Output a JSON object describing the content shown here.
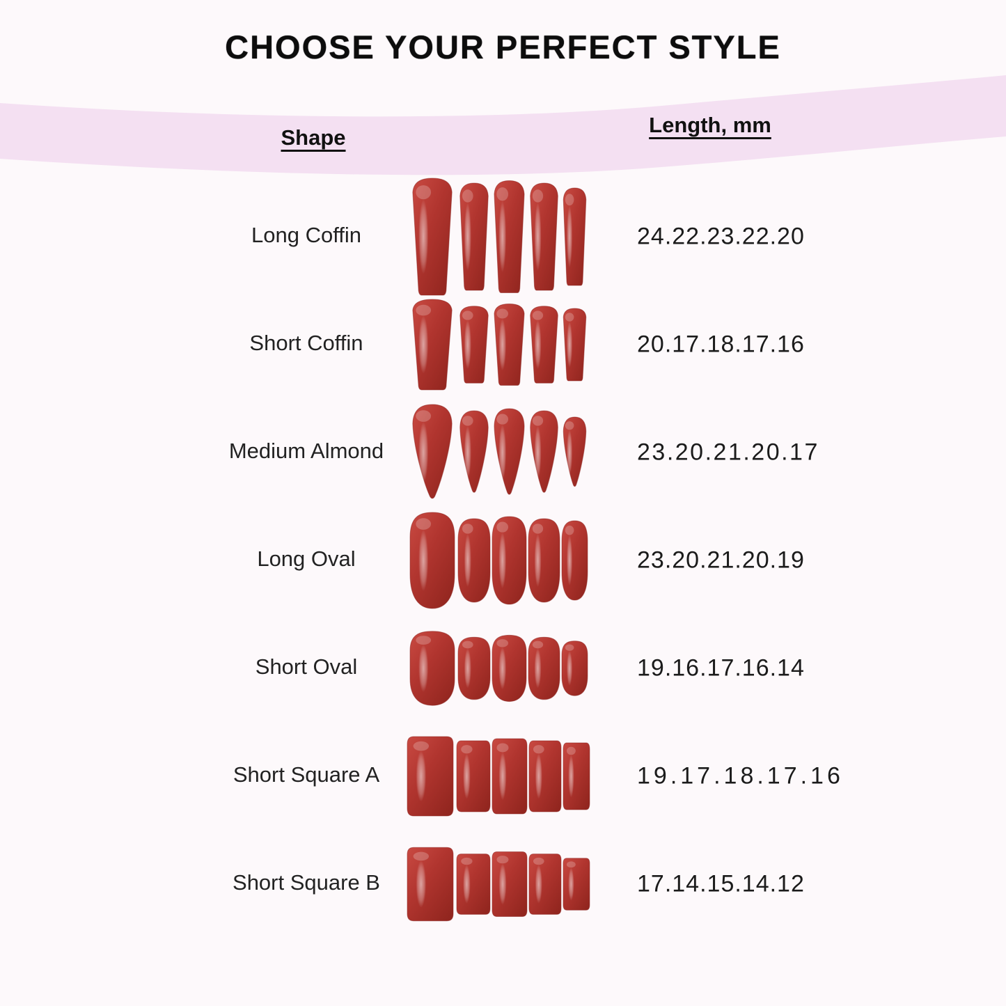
{
  "title": "CHOOSE YOUR PERFECT STYLE",
  "table": {
    "headers": {
      "shape": "Shape",
      "length": "Length, mm"
    },
    "rows": [
      {
        "shape": "Long Coffin",
        "lengths": "24.22.23.22.20",
        "nail_shape": "coffin",
        "lengths_mm": [
          24,
          22,
          23,
          22,
          20
        ]
      },
      {
        "shape": "Short Coffin",
        "lengths": "20.17.18.17.16",
        "nail_shape": "coffin",
        "lengths_mm": [
          20,
          17,
          18,
          17,
          16
        ]
      },
      {
        "shape": "Medium Almond",
        "lengths": "23.20.21.20.17",
        "nail_shape": "almond",
        "lengths_mm": [
          23,
          20,
          21,
          20,
          17
        ]
      },
      {
        "shape": "Long Oval",
        "lengths": "23.20.21.20.19",
        "nail_shape": "oval",
        "lengths_mm": [
          23,
          20,
          21,
          20,
          19
        ]
      },
      {
        "shape": "Short Oval",
        "lengths": "19.16.17.16.14",
        "nail_shape": "oval",
        "lengths_mm": [
          19,
          16,
          17,
          16,
          14
        ]
      },
      {
        "shape": "Short Square A",
        "lengths": "19.17.18.17.16",
        "nail_shape": "square",
        "lengths_mm": [
          19,
          17,
          18,
          17,
          16
        ]
      },
      {
        "shape": "Short Square B",
        "lengths": "17.14.15.14.12",
        "nail_shape": "square",
        "lengths_mm": [
          17,
          14,
          15,
          14,
          12
        ]
      }
    ]
  },
  "colors": {
    "background": "#fdf9fb",
    "band_pink": "#f4e0f2",
    "nail_red": "#b23530",
    "nail_red_light": "#c94a42",
    "nail_red_dark": "#92261f",
    "text": "#1c1c1c"
  }
}
